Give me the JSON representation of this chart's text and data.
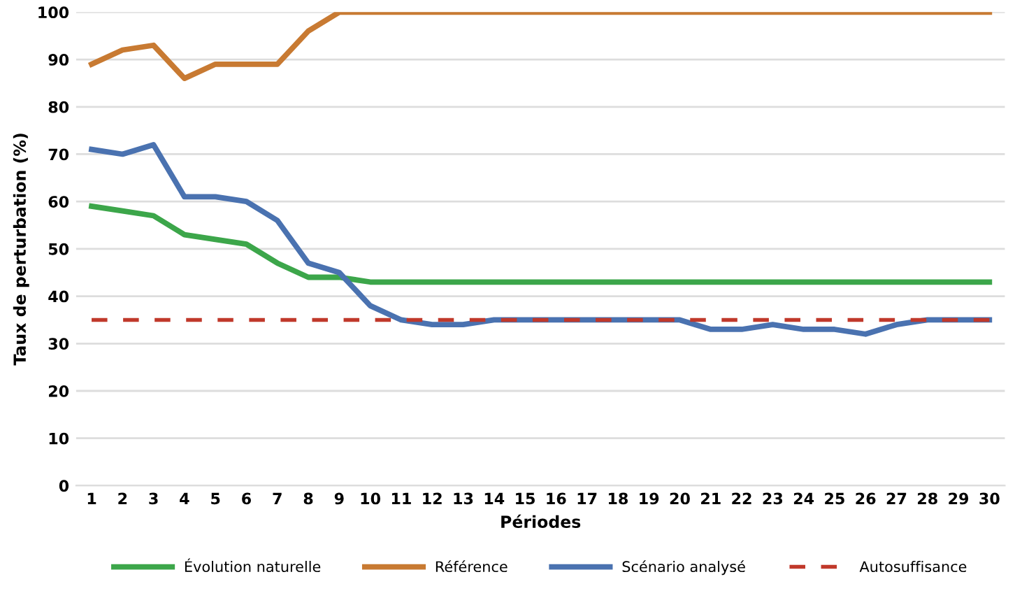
{
  "chart_data": {
    "type": "line",
    "xlabel": "Périodes",
    "ylabel": "Taux de perturbation (%)",
    "categories": [
      "1",
      "2",
      "3",
      "4",
      "5",
      "6",
      "7",
      "8",
      "9",
      "10",
      "11",
      "12",
      "13",
      "14",
      "15",
      "16",
      "17",
      "18",
      "19",
      "20",
      "21",
      "22",
      "23",
      "24",
      "25",
      "26",
      "27",
      "28",
      "29",
      "30"
    ],
    "series": [
      {
        "name": "Évolution naturelle",
        "color": "#3ca64a",
        "values": [
          59,
          58,
          57,
          53,
          52,
          51,
          47,
          44,
          44,
          43,
          43,
          43,
          43,
          43,
          43,
          43,
          43,
          43,
          43,
          43,
          43,
          43,
          43,
          43,
          43,
          43,
          43,
          43,
          43,
          43
        ]
      },
      {
        "name": "Référence",
        "color": "#c87a32",
        "values": [
          89,
          92,
          93,
          86,
          89,
          89,
          89,
          96,
          100,
          100,
          100,
          100,
          100,
          100,
          100,
          100,
          100,
          100,
          100,
          100,
          100,
          100,
          100,
          100,
          100,
          100,
          100,
          100,
          100,
          100
        ]
      },
      {
        "name": "Scénario analysé",
        "color": "#4a72b0",
        "values": [
          71,
          70,
          72,
          61,
          61,
          60,
          56,
          47,
          45,
          38,
          35,
          34,
          34,
          35,
          35,
          35,
          35,
          35,
          35,
          35,
          33,
          33,
          34,
          33,
          33,
          32,
          34,
          35,
          35,
          35
        ]
      },
      {
        "name": "Autosuffisance",
        "color": "#c0392b",
        "line_style": "dashed",
        "values": [
          35,
          35,
          35,
          35,
          35,
          35,
          35,
          35,
          35,
          35,
          35,
          35,
          35,
          35,
          35,
          35,
          35,
          35,
          35,
          35,
          35,
          35,
          35,
          35,
          35,
          35,
          35,
          35,
          35,
          35
        ]
      }
    ],
    "ylim": [
      0,
      100
    ],
    "yticks": [
      0,
      10,
      20,
      30,
      40,
      50,
      60,
      70,
      80,
      90,
      100
    ],
    "grid": "y",
    "legend": "bottom",
    "line_style": "solid"
  }
}
